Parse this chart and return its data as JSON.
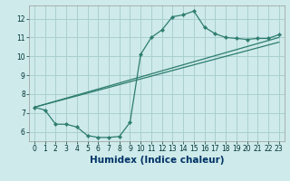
{
  "title": "",
  "xlabel": "Humidex (Indice chaleur)",
  "bg_color": "#ceeaea",
  "line_color": "#2d7d6e",
  "grid_color": "#aacfcf",
  "xlim": [
    -0.5,
    23.5
  ],
  "ylim": [
    5.5,
    12.7
  ],
  "xticks": [
    0,
    1,
    2,
    3,
    4,
    5,
    6,
    7,
    8,
    9,
    10,
    11,
    12,
    13,
    14,
    15,
    16,
    17,
    18,
    19,
    20,
    21,
    22,
    23
  ],
  "yticks": [
    6,
    7,
    8,
    9,
    10,
    11,
    12
  ],
  "curve1_x": [
    0,
    1,
    2,
    3,
    4,
    5,
    6,
    7,
    8,
    9,
    10,
    11,
    12,
    13,
    14,
    15,
    16,
    17,
    18,
    19,
    20,
    21,
    22,
    23
  ],
  "curve1_y": [
    7.3,
    7.15,
    6.4,
    6.4,
    6.25,
    5.8,
    5.7,
    5.7,
    5.75,
    6.5,
    10.1,
    11.0,
    11.4,
    12.1,
    12.2,
    12.4,
    11.55,
    11.2,
    11.0,
    10.95,
    10.9,
    10.95,
    10.95,
    11.15
  ],
  "curve2_x": [
    0,
    23
  ],
  "curve2_y": [
    7.3,
    11.0
  ],
  "curve3_x": [
    0,
    23
  ],
  "curve3_y": [
    7.3,
    10.75
  ],
  "xlabel_color": "#003366",
  "xlabel_fontsize": 7.5,
  "tick_fontsize": 5.5,
  "tick_color": "#003333"
}
